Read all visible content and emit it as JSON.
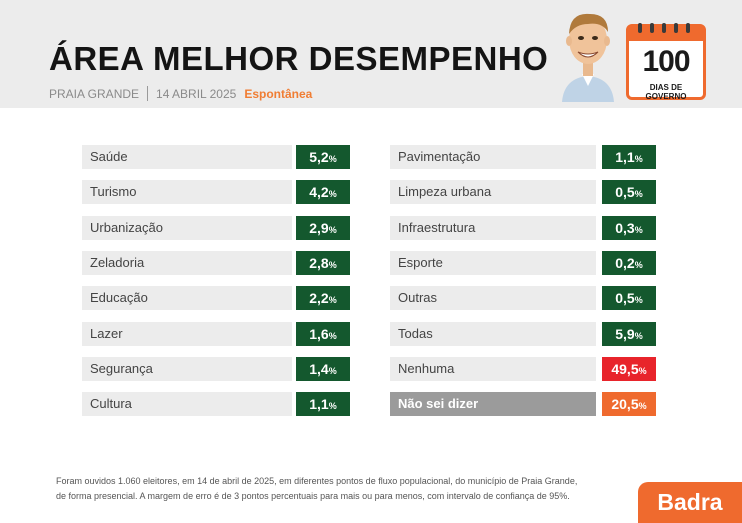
{
  "header": {
    "title": "ÁREA MELHOR DESEMPENHO",
    "city": "PRAIA GRANDE",
    "date": "14 ABRIL 2025",
    "mode": "Espontânea",
    "badge_number": "100",
    "badge_label": "DIAS DE GOVERNO"
  },
  "colors": {
    "green": "#14582e",
    "red": "#e8242b",
    "orange": "#ef6a2e",
    "label_bg": "#ececec",
    "dark_label_bg": "#9b9b9b"
  },
  "chart_data": {
    "type": "table",
    "unit": "%",
    "left": [
      {
        "label": "Saúde",
        "value": "5,2",
        "color": "green"
      },
      {
        "label": "Turismo",
        "value": "4,2",
        "color": "green"
      },
      {
        "label": "Urbanização",
        "value": "2,9",
        "color": "green"
      },
      {
        "label": "Zeladoria",
        "value": "2,8",
        "color": "green"
      },
      {
        "label": "Educação",
        "value": "2,2",
        "color": "green"
      },
      {
        "label": "Lazer",
        "value": "1,6",
        "color": "green"
      },
      {
        "label": "Segurança",
        "value": "1,4",
        "color": "green"
      },
      {
        "label": "Cultura",
        "value": "1,1",
        "color": "green"
      }
    ],
    "right": [
      {
        "label": "Pavimentação",
        "value": "1,1",
        "color": "green"
      },
      {
        "label": "Limpeza urbana",
        "value": "0,5",
        "color": "green"
      },
      {
        "label": "Infraestrutura",
        "value": "0,3",
        "color": "green"
      },
      {
        "label": "Esporte",
        "value": "0,2",
        "color": "green"
      },
      {
        "label": "Outras",
        "value": "0,5",
        "color": "green"
      },
      {
        "label": "Todas",
        "value": "5,9",
        "color": "green"
      },
      {
        "label": "Nenhuma",
        "value": "49,5",
        "color": "red"
      },
      {
        "label": "Não sei dizer",
        "value": "20,5",
        "color": "orange",
        "dark": true
      }
    ]
  },
  "footnote": {
    "line1": "Foram ouvidos 1.060 eleitores, em 14 de abril de 2025, em diferentes pontos de fluxo populacional, do município de Praia Grande,",
    "line2": "de forma presencial. A margem de erro é de 3 pontos percentuais para mais ou para menos, com intervalo de confiança de 95%."
  },
  "brand": "Badra"
}
